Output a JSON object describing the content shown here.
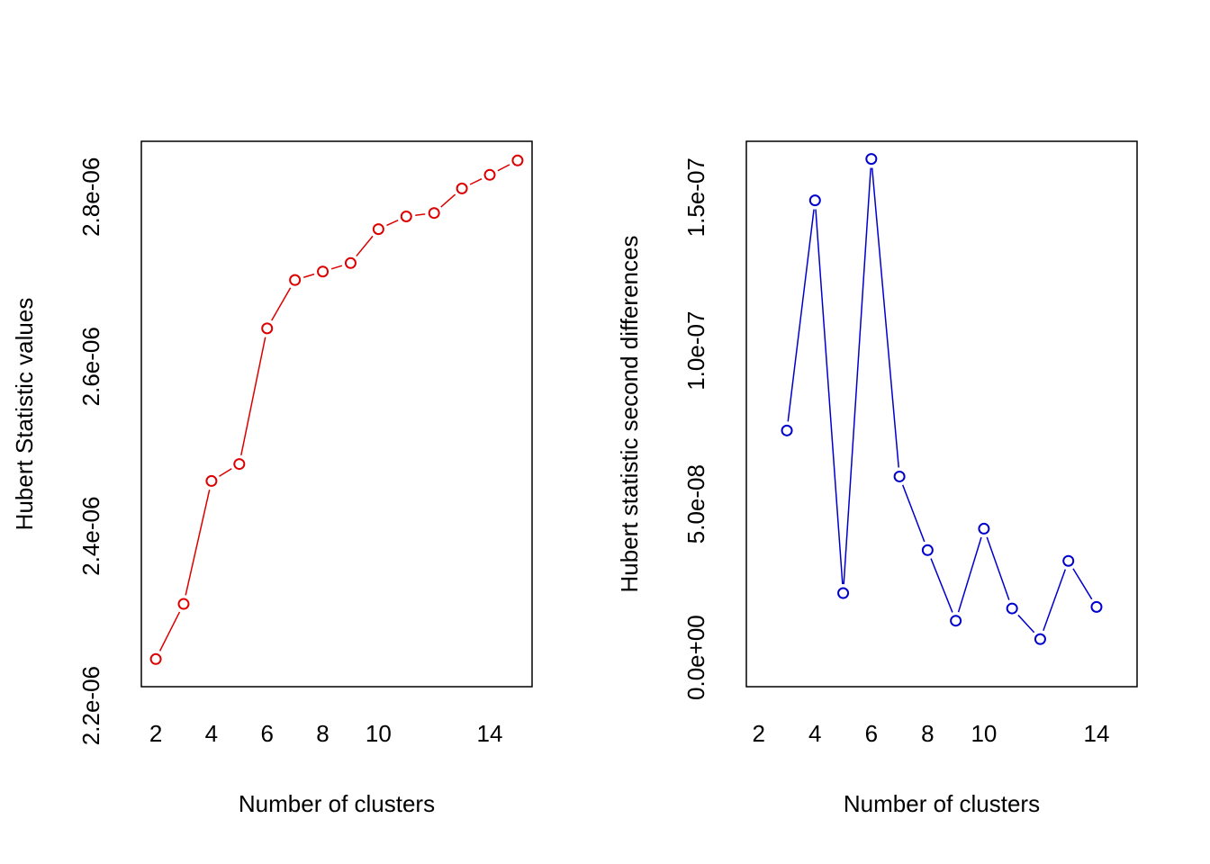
{
  "chart_data": [
    {
      "type": "line",
      "title": "",
      "xlabel": "Number of clusters",
      "ylabel": "Hubert Statistic values",
      "color": "#dd0000",
      "marker": "open-circle",
      "line_style": "b",
      "x": [
        2,
        3,
        4,
        5,
        6,
        7,
        8,
        9,
        10,
        11,
        12,
        13,
        14,
        15
      ],
      "y": [
        2.255e-06,
        2.32e-06,
        2.465e-06,
        2.485e-06,
        2.645e-06,
        2.702e-06,
        2.712e-06,
        2.722e-06,
        2.762e-06,
        2.777e-06,
        2.781e-06,
        2.81e-06,
        2.826e-06,
        2.843e-06
      ],
      "xlim": [
        1.48,
        15.52
      ],
      "ylim": [
        2.2224e-06,
        2.8656e-06
      ],
      "xticks": [
        2,
        4,
        6,
        8,
        10,
        14
      ],
      "xtick_labels": [
        "2",
        "4",
        "6",
        "8",
        "10",
        "14"
      ],
      "yticks": [
        2.2e-06,
        2.4e-06,
        2.6e-06,
        2.8e-06
      ],
      "ytick_labels": [
        "2.2e-06",
        "2.4e-06",
        "2.6e-06",
        "2.8e-06"
      ],
      "grid": false,
      "legend": "none"
    },
    {
      "type": "line",
      "title": "",
      "xlabel": "Number of clusters",
      "ylabel": "Hubert statistic second differences",
      "color": "#0000cc",
      "marker": "open-circle",
      "line_style": "b",
      "x": [
        3,
        4,
        5,
        6,
        7,
        8,
        9,
        10,
        11,
        12,
        13,
        14
      ],
      "y": [
        7.4e-08,
        1.49e-07,
        2.1e-08,
        1.625e-07,
        5.9e-08,
        3.5e-08,
        1.2e-08,
        4.2e-08,
        1.6e-08,
        6e-09,
        3.15e-08,
        1.65e-08
      ],
      "xlim": [
        1.56,
        15.44
      ],
      "ylim": [
        -9.5e-09,
        1.6825e-07
      ],
      "xticks": [
        2,
        4,
        6,
        8,
        10,
        14
      ],
      "xtick_labels": [
        "2",
        "4",
        "6",
        "8",
        "10",
        "14"
      ],
      "yticks": [
        0,
        5e-08,
        1e-07,
        1.5e-07
      ],
      "ytick_labels": [
        "0.0e+00",
        "5.0e-08",
        "1.0e-07",
        "1.5e-07"
      ],
      "grid": false,
      "legend": "none"
    }
  ]
}
